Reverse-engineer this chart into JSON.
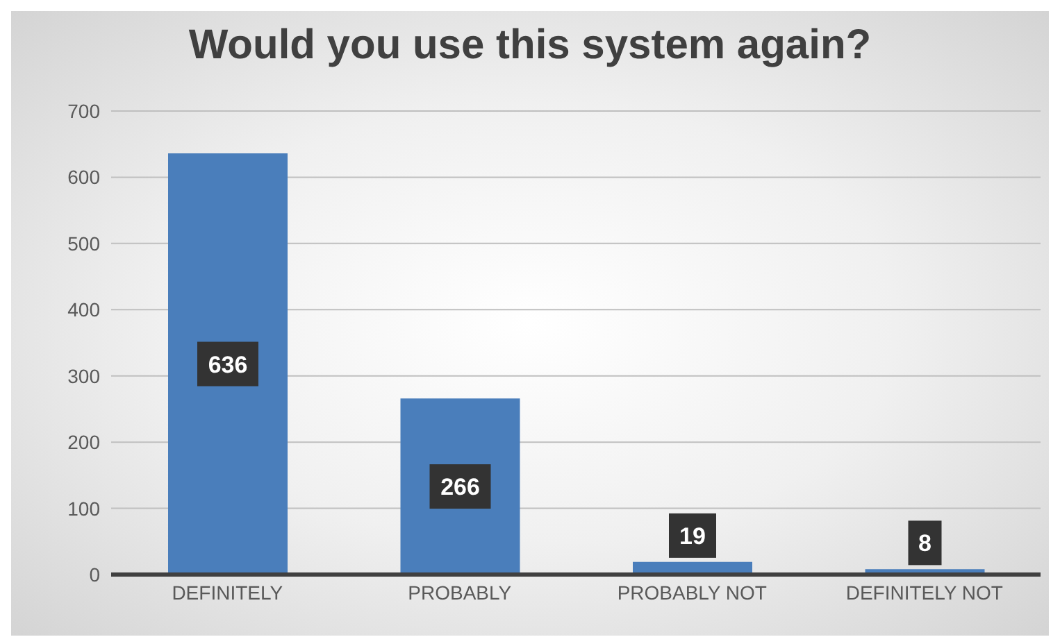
{
  "chart_data": {
    "type": "bar",
    "title": "Would you use this system again?",
    "categories": [
      "DEFINITELY",
      "PROBABLY",
      "PROBABLY NOT",
      "DEFINITELY NOT"
    ],
    "values": [
      636,
      266,
      19,
      8
    ],
    "color": "#4a7ebb",
    "ylim": [
      0,
      700
    ],
    "yticks": [
      0,
      100,
      200,
      300,
      400,
      500,
      600,
      700
    ],
    "grid": "y",
    "data_labels": true
  }
}
